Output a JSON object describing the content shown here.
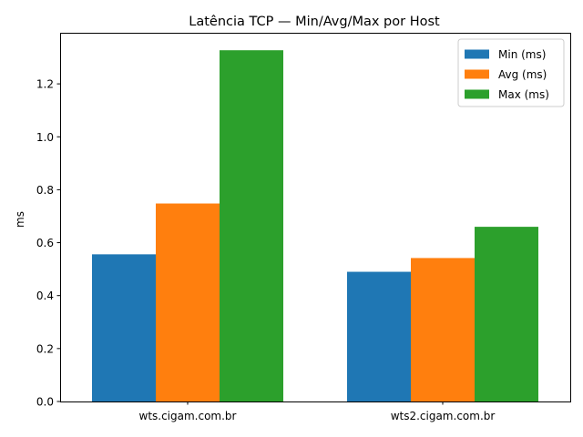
{
  "chart_data": {
    "type": "bar",
    "title": "Latência TCP — Min/Avg/Max por Host",
    "xlabel": "",
    "ylabel": "ms",
    "categories": [
      "wts.cigam.com.br",
      "wts2.cigam.com.br"
    ],
    "series": [
      {
        "name": "Min (ms)",
        "color": "#1f77b4",
        "values": [
          0.556,
          0.49
        ]
      },
      {
        "name": "Avg (ms)",
        "color": "#ff7f0e",
        "values": [
          0.748,
          0.542
        ]
      },
      {
        "name": "Max (ms)",
        "color": "#2ca02c",
        "values": [
          1.327,
          0.66
        ]
      }
    ],
    "ylim": [
      0,
      1.393
    ],
    "yticks": [
      "0.0",
      "0.2",
      "0.4",
      "0.6",
      "0.8",
      "1.0",
      "1.2"
    ],
    "grid": false,
    "legend_position": "top-right"
  }
}
